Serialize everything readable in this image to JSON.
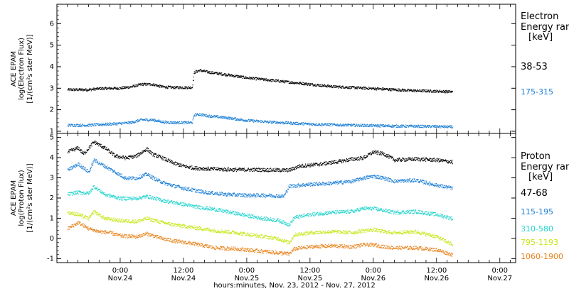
{
  "chart_data": {
    "type": "scatter",
    "xlabel": "hours:minutes, Nov. 23, 2012 - Nov. 27, 2012",
    "xlim": [
      "2012-11-23 12:00",
      "2012-11-27 03:00"
    ],
    "xticks": [
      {
        "time": "0:00",
        "date": "Nov.24"
      },
      {
        "time": "12:00",
        "date": "Nov.24"
      },
      {
        "time": "0:00",
        "date": "Nov.25"
      },
      {
        "time": "12:00",
        "date": "Nov.25"
      },
      {
        "time": "0:00",
        "date": "Nov.26"
      },
      {
        "time": "12:00",
        "date": "Nov.26"
      },
      {
        "time": "0:00",
        "date": "Nov.27"
      }
    ],
    "panels": [
      {
        "name": "electron",
        "ylabel_line1": "ACE EPAM",
        "ylabel_line2": "log(Electron Flux)",
        "ylabel_line3": "[1/(cm²s ster MeV)]",
        "ylim": [
          0.9,
          6.9
        ],
        "yticks": [
          1,
          2,
          3,
          4,
          5,
          6
        ],
        "legend_title_line1": "Electron",
        "legend_title_line2": "Energy ranges",
        "legend_title_line3": "[keV]",
        "series": [
          {
            "name": "38-53",
            "color": "#000000",
            "points": [
              [
                -10,
                2.95
              ],
              [
                -6,
                2.95
              ],
              [
                -4,
                3.0
              ],
              [
                0,
                3.02
              ],
              [
                2,
                3.08
              ],
              [
                4,
                3.2
              ],
              [
                6,
                3.2
              ],
              [
                8,
                3.08
              ],
              [
                10,
                3.05
              ],
              [
                12,
                3.05
              ],
              [
                13.6,
                3.05
              ],
              [
                14.0,
                3.75
              ],
              [
                15,
                3.85
              ],
              [
                17,
                3.75
              ],
              [
                20,
                3.65
              ],
              [
                24,
                3.5
              ],
              [
                28,
                3.4
              ],
              [
                32,
                3.3
              ],
              [
                36,
                3.2
              ],
              [
                40,
                3.1
              ],
              [
                44,
                3.05
              ],
              [
                48,
                3.0
              ],
              [
                52,
                2.95
              ],
              [
                56,
                2.9
              ],
              [
                60,
                2.88
              ],
              [
                63,
                2.85
              ]
            ]
          },
          {
            "name": "175-315",
            "color": "#1c7fd6",
            "points": [
              [
                -10,
                1.3
              ],
              [
                -6,
                1.3
              ],
              [
                -4,
                1.33
              ],
              [
                0,
                1.38
              ],
              [
                2,
                1.42
              ],
              [
                4,
                1.55
              ],
              [
                6,
                1.55
              ],
              [
                8,
                1.45
              ],
              [
                10,
                1.42
              ],
              [
                12,
                1.42
              ],
              [
                13.6,
                1.42
              ],
              [
                14.0,
                1.78
              ],
              [
                15,
                1.8
              ],
              [
                17,
                1.72
              ],
              [
                20,
                1.65
              ],
              [
                24,
                1.52
              ],
              [
                28,
                1.45
              ],
              [
                32,
                1.4
              ],
              [
                36,
                1.35
              ],
              [
                40,
                1.32
              ],
              [
                44,
                1.3
              ],
              [
                48,
                1.28
              ],
              [
                52,
                1.26
              ],
              [
                56,
                1.25
              ],
              [
                60,
                1.24
              ],
              [
                63,
                1.22
              ]
            ]
          }
        ]
      },
      {
        "name": "proton",
        "ylabel_line1": "ACE EPAM",
        "ylabel_line2": "log(Proton Flux)",
        "ylabel_line3": "[1/(cm²s ster MeV)]",
        "ylim": [
          -1.2,
          5.2
        ],
        "yticks": [
          -1,
          0,
          1,
          2,
          3,
          4,
          5
        ],
        "legend_title_line1": "Proton",
        "legend_title_line2": "Energy ranges",
        "legend_title_line3": "[keV]",
        "series": [
          {
            "name": "47-68",
            "color": "#000000",
            "points": [
              [
                -10,
                4.3
              ],
              [
                -8,
                4.5
              ],
              [
                -7,
                4.2
              ],
              [
                -5,
                4.8
              ],
              [
                -3,
                4.5
              ],
              [
                -1,
                4.1
              ],
              [
                1,
                4.0
              ],
              [
                3,
                4.1
              ],
              [
                5,
                4.45
              ],
              [
                6,
                4.2
              ],
              [
                8,
                4.0
              ],
              [
                10,
                3.75
              ],
              [
                12,
                3.6
              ],
              [
                14,
                3.5
              ],
              [
                18,
                3.45
              ],
              [
                22,
                3.42
              ],
              [
                26,
                3.42
              ],
              [
                30,
                3.4
              ],
              [
                32,
                3.4
              ],
              [
                34,
                3.6
              ],
              [
                38,
                3.7
              ],
              [
                42,
                3.85
              ],
              [
                44,
                3.95
              ],
              [
                46,
                4.0
              ],
              [
                48,
                4.3
              ],
              [
                50,
                4.2
              ],
              [
                52,
                3.9
              ],
              [
                56,
                3.95
              ],
              [
                60,
                3.9
              ],
              [
                63,
                3.8
              ]
            ]
          },
          {
            "name": "115-195",
            "color": "#1c7fd6",
            "points": [
              [
                -10,
                3.4
              ],
              [
                -8,
                3.7
              ],
              [
                -6,
                3.3
              ],
              [
                -5,
                3.9
              ],
              [
                -3,
                3.6
              ],
              [
                -1,
                3.3
              ],
              [
                1,
                3.0
              ],
              [
                3,
                3.0
              ],
              [
                5,
                3.2
              ],
              [
                7,
                2.9
              ],
              [
                9,
                2.7
              ],
              [
                12,
                2.5
              ],
              [
                16,
                2.3
              ],
              [
                20,
                2.2
              ],
              [
                24,
                2.15
              ],
              [
                28,
                2.15
              ],
              [
                31,
                2.1
              ],
              [
                32,
                2.6
              ],
              [
                36,
                2.7
              ],
              [
                40,
                2.75
              ],
              [
                44,
                2.85
              ],
              [
                46,
                3.0
              ],
              [
                48,
                3.1
              ],
              [
                50,
                3.0
              ],
              [
                52,
                2.85
              ],
              [
                56,
                2.9
              ],
              [
                60,
                2.65
              ],
              [
                63,
                2.5
              ]
            ]
          },
          {
            "name": "310-580",
            "color": "#22d4cc",
            "points": [
              [
                -10,
                2.2
              ],
              [
                -8,
                2.3
              ],
              [
                -6,
                2.25
              ],
              [
                -5,
                2.6
              ],
              [
                -3,
                2.2
              ],
              [
                0,
                2.0
              ],
              [
                3,
                2.0
              ],
              [
                5,
                2.1
              ],
              [
                8,
                1.9
              ],
              [
                10,
                1.8
              ],
              [
                14,
                1.6
              ],
              [
                18,
                1.45
              ],
              [
                22,
                1.25
              ],
              [
                26,
                1.05
              ],
              [
                30,
                0.9
              ],
              [
                32,
                0.7
              ],
              [
                33,
                1.05
              ],
              [
                36,
                1.2
              ],
              [
                40,
                1.3
              ],
              [
                44,
                1.35
              ],
              [
                46,
                1.5
              ],
              [
                48,
                1.5
              ],
              [
                50,
                1.4
              ],
              [
                52,
                1.3
              ],
              [
                56,
                1.35
              ],
              [
                60,
                1.2
              ],
              [
                63,
                1.0
              ]
            ]
          },
          {
            "name": "795-1193",
            "color": "#c8e61a",
            "points": [
              [
                -10,
                1.3
              ],
              [
                -8,
                1.2
              ],
              [
                -6,
                1.0
              ],
              [
                -5,
                1.35
              ],
              [
                -3,
                1.0
              ],
              [
                0,
                0.9
              ],
              [
                3,
                0.85
              ],
              [
                5,
                1.0
              ],
              [
                8,
                0.8
              ],
              [
                10,
                0.7
              ],
              [
                14,
                0.55
              ],
              [
                18,
                0.4
              ],
              [
                22,
                0.3
              ],
              [
                26,
                0.15
              ],
              [
                30,
                0.0
              ],
              [
                32,
                -0.2
              ],
              [
                33,
                0.2
              ],
              [
                36,
                0.3
              ],
              [
                40,
                0.35
              ],
              [
                44,
                0.3
              ],
              [
                46,
                0.4
              ],
              [
                48,
                0.45
              ],
              [
                50,
                0.35
              ],
              [
                52,
                0.3
              ],
              [
                56,
                0.35
              ],
              [
                60,
                0.1
              ],
              [
                63,
                -0.3
              ]
            ]
          },
          {
            "name": "1060-1900",
            "color": "#e8821a",
            "points": [
              [
                -10,
                0.5
              ],
              [
                -8,
                0.8
              ],
              [
                -6,
                0.5
              ],
              [
                -4,
                0.35
              ],
              [
                -2,
                0.3
              ],
              [
                0,
                0.15
              ],
              [
                3,
                0.1
              ],
              [
                5,
                0.25
              ],
              [
                8,
                0.0
              ],
              [
                10,
                -0.1
              ],
              [
                14,
                -0.25
              ],
              [
                18,
                -0.45
              ],
              [
                22,
                -0.5
              ],
              [
                26,
                -0.6
              ],
              [
                30,
                -0.7
              ],
              [
                32,
                -0.75
              ],
              [
                33,
                -0.5
              ],
              [
                36,
                -0.4
              ],
              [
                40,
                -0.35
              ],
              [
                44,
                -0.4
              ],
              [
                46,
                -0.3
              ],
              [
                48,
                -0.3
              ],
              [
                50,
                -0.4
              ],
              [
                52,
                -0.45
              ],
              [
                56,
                -0.45
              ],
              [
                60,
                -0.55
              ],
              [
                63,
                -0.8
              ]
            ]
          }
        ]
      }
    ]
  }
}
